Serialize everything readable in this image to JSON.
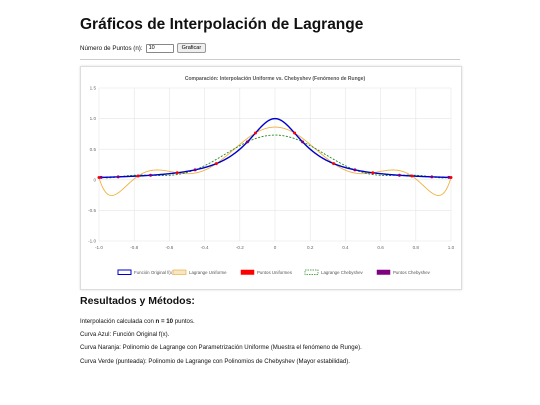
{
  "page": {
    "title": "Gráficos de Interpolación de Lagrange",
    "points_label": "Número de Puntos (n):",
    "points_value": "10",
    "plot_button": "Graficar"
  },
  "results": {
    "heading": "Resultados y Métodos:",
    "line1_prefix": "Interpolación calculada con ",
    "line1_bold": "n = 10",
    "line1_suffix": " puntos.",
    "line2": "Curva Azul: Función Original f(x).",
    "line3": "Curva Naranja: Polinomio de Lagrange con Parametrización Uniforme (Muestra el fenómeno de Runge).",
    "line4": "Curva Verde (punteada): Polinomio de Lagrange con Polinomios de Chebyshev (Mayor estabilidad)."
  },
  "chart_data": {
    "type": "line",
    "title": "Comparación: Interpolación Uniforme vs. Chebyshev (Fenómeno de Runge)",
    "xlim": [
      -1.0,
      1.0
    ],
    "ylim": [
      -1.0,
      1.5
    ],
    "x_ticks": [
      "-1.0",
      "-0.8",
      "-0.6",
      "-0.4",
      "-0.2",
      "0",
      "0.2",
      "0.4",
      "0.6",
      "0.8",
      "1.0"
    ],
    "y_ticks": [
      "1.5",
      "1.0",
      "0.5",
      "0",
      "-0.5",
      "-1.0"
    ],
    "grid": true,
    "legend_position": "bottom",
    "n": 10,
    "series": [
      {
        "name": "Función Original f(x)",
        "kind": "function",
        "color": "#0000cc"
      },
      {
        "name": "Lagrange Uniforme",
        "kind": "uniform",
        "color": "#f0b040"
      },
      {
        "name": "Puntos Uniformes",
        "kind": "uniform-points",
        "color": "#ff0000"
      },
      {
        "name": "Lagrange Chebyshev",
        "kind": "chebyshev",
        "color": "#228822"
      },
      {
        "name": "Puntos Chebyshev",
        "kind": "chebyshev-points",
        "color": "#800080"
      }
    ]
  }
}
